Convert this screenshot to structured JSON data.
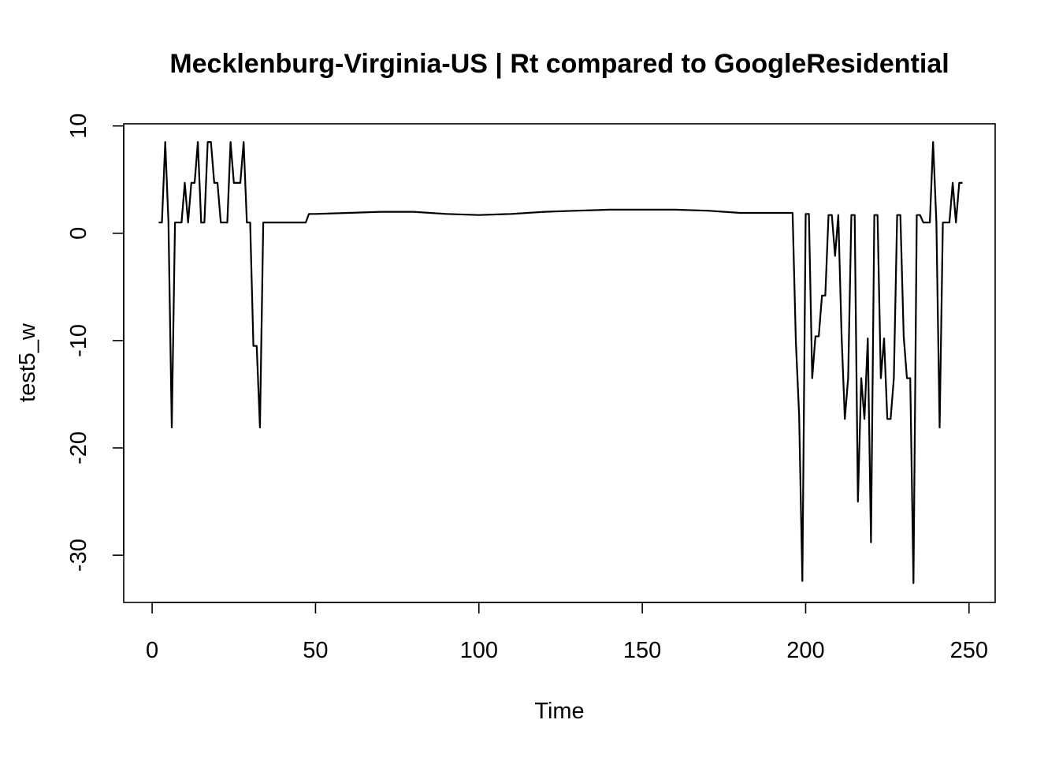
{
  "chart_data": {
    "type": "line",
    "title": "Mecklenburg-Virginia-US | Rt compared to GoogleResidential",
    "xlabel": "Time",
    "ylabel": "test5_w",
    "xlim": [
      -8.7,
      258
    ],
    "ylim": [
      -34.4,
      10.2
    ],
    "x_ticks": [
      0,
      50,
      100,
      150,
      200,
      250
    ],
    "y_ticks": [
      -30,
      -20,
      -10,
      0,
      10
    ],
    "x_tick_labels": [
      "0",
      "50",
      "100",
      "150",
      "200",
      "250"
    ],
    "y_tick_labels": [
      "-30",
      "-20",
      "-10",
      "0",
      "10"
    ],
    "grid": false,
    "legend": "none",
    "line_color": "#000000",
    "series": [
      {
        "x": [
          2,
          3,
          4,
          5,
          6,
          7,
          8,
          9,
          10,
          11,
          12,
          13,
          14,
          15,
          16,
          17,
          18,
          19,
          20,
          21,
          22,
          23,
          24,
          25,
          26,
          27,
          28,
          29,
          30,
          31,
          32,
          33,
          34,
          35,
          40,
          45,
          47,
          48,
          50,
          60,
          70,
          80,
          90,
          100,
          110,
          120,
          130,
          140,
          150,
          160,
          170,
          180,
          190,
          196,
          197,
          198,
          199,
          200,
          201,
          202,
          203,
          204,
          205,
          206,
          207,
          208,
          209,
          210,
          211,
          212,
          213,
          214,
          215,
          216,
          217,
          218,
          219,
          220,
          221,
          222,
          223,
          224,
          225,
          226,
          227,
          228,
          229,
          230,
          231,
          232,
          233,
          234,
          235,
          236,
          237,
          238,
          239,
          240,
          241,
          242,
          243,
          244,
          245,
          246,
          247,
          248
        ],
        "y": [
          1.0,
          1.0,
          8.5,
          1.0,
          -18.1,
          1.0,
          1.0,
          1.0,
          4.7,
          1.0,
          4.7,
          4.7,
          8.5,
          1.0,
          1.0,
          8.5,
          8.5,
          4.7,
          4.7,
          1.0,
          1.0,
          1.0,
          8.5,
          4.7,
          4.7,
          4.7,
          8.5,
          1.0,
          1.0,
          -10.5,
          -10.5,
          -18.1,
          1.0,
          1.0,
          1.0,
          1.0,
          1.0,
          1.8,
          1.8,
          1.9,
          2.0,
          2.0,
          1.8,
          1.7,
          1.8,
          2.0,
          2.1,
          2.2,
          2.2,
          2.2,
          2.1,
          1.9,
          1.9,
          1.9,
          -10.0,
          -17.0,
          -32.4,
          1.8,
          1.8,
          -13.5,
          -9.6,
          -9.6,
          -5.8,
          -5.8,
          1.7,
          1.7,
          -2.1,
          1.7,
          -9.6,
          -17.3,
          -13.5,
          1.7,
          1.7,
          -25.0,
          -13.5,
          -17.3,
          -9.8,
          -28.8,
          1.7,
          1.7,
          -13.5,
          -9.8,
          -17.3,
          -17.3,
          -13.5,
          1.7,
          1.7,
          -9.6,
          -13.5,
          -13.5,
          -32.6,
          1.7,
          1.7,
          1.0,
          1.0,
          1.0,
          8.5,
          1.0,
          -18.1,
          1.0,
          1.0,
          1.0,
          4.7,
          1.0,
          4.7,
          4.7
        ]
      }
    ]
  }
}
